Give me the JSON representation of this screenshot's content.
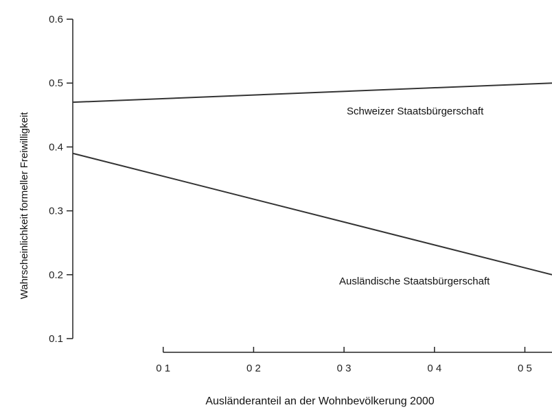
{
  "chart_data": {
    "type": "line",
    "title": "",
    "xlabel": "Ausländeranteil an der Wohnbevölkerung 2000",
    "ylabel": "Wahrscheinlichkeit formeller Freiwilligkeit",
    "xlim": [
      0.0,
      0.53
    ],
    "ylim": [
      0.1,
      0.6
    ],
    "x_ticks": [
      0.1,
      0.2,
      0.3,
      0.4,
      0.5
    ],
    "x_tick_labels": [
      "0 1",
      "0 2",
      "0 3",
      "0 4",
      "0 5"
    ],
    "y_ticks": [
      0.1,
      0.2,
      0.3,
      0.4,
      0.5,
      0.6
    ],
    "y_tick_labels": [
      "0.1",
      "0.2",
      "0.3",
      "0.4",
      "0.5",
      "0.6"
    ],
    "grid": false,
    "series": [
      {
        "name": "Schweizer Staatsbürgerschaft",
        "color": "#333333",
        "x": [
          0.0,
          0.53
        ],
        "y": [
          0.47,
          0.5
        ]
      },
      {
        "name": "Ausländische Staatsbürgerschaft",
        "color": "#333333",
        "x": [
          0.0,
          0.53
        ],
        "y": [
          0.39,
          0.2
        ]
      }
    ]
  }
}
